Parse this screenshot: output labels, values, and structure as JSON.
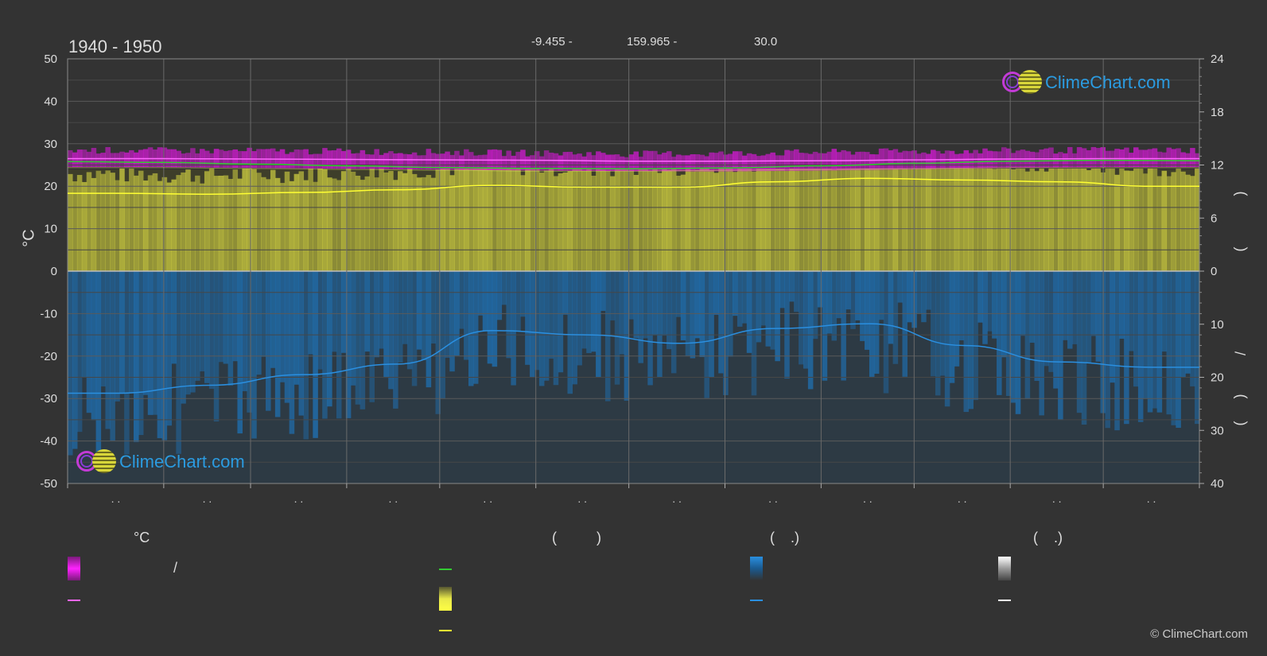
{
  "header": {
    "title": "1940 - 1950",
    "lat": "-9.455 -",
    "lon": "159.965 -",
    "elev": "30.0"
  },
  "axes": {
    "left_unit": "°C",
    "left_ticks": [
      "50",
      "40",
      "30",
      "20",
      "10",
      "0",
      "-10",
      "-20",
      "-30",
      "-40",
      "-50"
    ],
    "right_top_ticks": [
      "24",
      "18",
      "12",
      "6",
      "0"
    ],
    "right_bottom_ticks": [
      "10",
      "20",
      "30",
      "40"
    ],
    "right_glyphs": [
      ")",
      "(",
      "/",
      ")",
      "("
    ],
    "x_tick_label": ". ."
  },
  "legend": {
    "col1_header": "°C",
    "col2_header": "(          )",
    "col3_header": "(    .)",
    "col4_header": "(    .)",
    "slash": "/"
  },
  "brand": {
    "name": "ClimeChart.com",
    "copyright": "© ClimeChart.com"
  },
  "colors": {
    "background": "#333333",
    "temp_band": "#d01ad0",
    "temp_mean": "#ff66ff",
    "sea_temp": "#33cc33",
    "daylight": "#ffff44",
    "sunshine": "#c8c840",
    "sunshine_line": "#ffff33",
    "precip": "#1f6fb0",
    "precip_line": "#2a8fe0",
    "grid": "#5a5a5a"
  },
  "chart_data": {
    "type": "line",
    "months": 12,
    "x_tick_labels": [
      ". .",
      ". .",
      ". .",
      ". .",
      ". .",
      ". .",
      ". .",
      ". .",
      ". .",
      ". .",
      ". .",
      ". ."
    ],
    "left_axis": {
      "unit": "°C",
      "ylim": [
        -50,
        50
      ]
    },
    "right_axis_top": {
      "ylim": [
        0,
        24
      ]
    },
    "right_axis_bottom": {
      "ylim": [
        0,
        40
      ],
      "inverted": true
    },
    "series": [
      {
        "key": "temp_max",
        "x": [
          0,
          1,
          2,
          3,
          4,
          5,
          6,
          7,
          8,
          9,
          10,
          11,
          12
        ],
        "values": [
          28.5,
          28.4,
          28.3,
          28.2,
          28.0,
          27.8,
          27.6,
          27.7,
          28.0,
          28.2,
          28.4,
          28.5,
          28.5
        ]
      },
      {
        "key": "temp_min",
        "x": [
          0,
          1,
          2,
          3,
          4,
          5,
          6,
          7,
          8,
          9,
          10,
          11,
          12
        ],
        "values": [
          25.0,
          25.0,
          24.8,
          24.6,
          24.4,
          24.2,
          24.0,
          24.0,
          24.2,
          24.5,
          24.8,
          25.0,
          25.0
        ]
      },
      {
        "key": "temp_mean",
        "x": [
          0,
          1,
          2,
          3,
          4,
          5,
          6,
          7,
          8,
          9,
          10,
          11,
          12
        ],
        "values": [
          26.5,
          26.5,
          26.4,
          26.3,
          26.2,
          26.1,
          25.9,
          25.9,
          26.0,
          26.2,
          26.4,
          26.5,
          26.5
        ]
      },
      {
        "key": "sea_temp",
        "x": [
          0,
          1,
          2,
          3,
          4,
          5,
          6,
          7,
          8,
          9,
          10,
          11,
          12
        ],
        "values": [
          25.8,
          25.6,
          25.2,
          24.8,
          24.4,
          24.2,
          24.1,
          24.3,
          24.8,
          25.4,
          25.9,
          26.1,
          26.0
        ]
      },
      {
        "key": "daylight_hours",
        "x": [
          0,
          1,
          2,
          3,
          4,
          5,
          6,
          7,
          8,
          9,
          10,
          11,
          12
        ],
        "values": [
          11.7,
          11.7,
          11.6,
          11.5,
          11.4,
          11.3,
          11.3,
          11.4,
          11.5,
          11.6,
          11.7,
          11.7,
          11.7
        ]
      },
      {
        "key": "sunshine_hours",
        "x": [
          0,
          0.5,
          1.5,
          2.5,
          3.5,
          4.5,
          5.5,
          6.5,
          7.5,
          8.5,
          9.5,
          10.5,
          11.5,
          12
        ],
        "values": [
          8.8,
          8.8,
          8.7,
          8.9,
          9.2,
          9.7,
          9.5,
          9.5,
          10.1,
          10.5,
          10.3,
          10.1,
          9.6,
          9.6
        ]
      },
      {
        "key": "precip_mm_day",
        "x": [
          0,
          0.5,
          1.5,
          2.5,
          3.5,
          4.5,
          5.5,
          6.5,
          7.5,
          8.5,
          9.5,
          10.5,
          11.5,
          12
        ],
        "values": [
          23.0,
          23.0,
          21.5,
          19.5,
          17.5,
          11.2,
          12.0,
          13.6,
          10.8,
          9.9,
          14.0,
          17.1,
          18.1,
          18.1
        ]
      }
    ]
  }
}
